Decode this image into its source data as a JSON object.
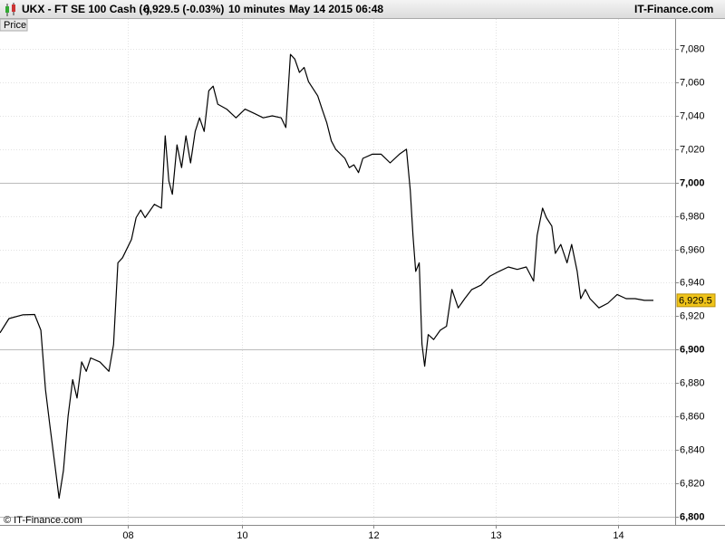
{
  "header": {
    "symbol": "UKX - FT SE 100 Cash (-)",
    "quote": "6,929.5 (-0.03%)",
    "interval": "10 minutes",
    "timestamp": "May 14 2015 06:48",
    "site": "IT-Finance.com"
  },
  "chart_data": {
    "type": "line",
    "panel_label": "Price",
    "watermark": "© IT-Finance.com",
    "color": "#000000",
    "grid": true,
    "x": [
      0,
      3.3,
      8.3,
      12.7,
      15,
      16.7,
      18.3,
      20,
      21.7,
      23.3,
      25,
      26.7,
      28.3,
      30,
      31.7,
      33.3,
      36.7,
      40,
      41.7,
      43.3,
      45,
      48.3,
      50,
      51.7,
      53.3,
      56.7,
      59.3,
      60.7,
      62,
      63.3,
      65,
      66.7,
      68.3,
      70,
      71.7,
      73.3,
      75,
      76.7,
      78.3,
      80,
      83.3,
      86.7,
      90,
      93.3,
      96.7,
      100,
      103.3,
      105,
      106.7,
      108.3,
      110,
      111.7,
      113.3,
      116.7,
      118.3,
      120,
      121.7,
      123.3,
      126.7,
      128.3,
      130,
      131.7,
      133.3,
      136.7,
      140,
      143.3,
      146.7,
      149.3,
      150.7,
      151.7,
      152.7,
      154,
      155,
      156,
      157.3,
      159.3,
      161.7,
      164,
      166,
      168.3,
      170.7,
      173.3,
      176.7,
      180,
      183.3,
      186.7,
      190,
      193.3,
      196,
      197.3,
      199.3,
      200.7,
      202.7,
      204,
      206,
      208.3,
      210,
      212,
      213.3,
      215,
      216.7,
      220,
      223.3,
      226.7,
      230,
      233.3,
      236.7,
      240
    ],
    "values": [
      6910,
      6918.6,
      6920.8,
      6921,
      6911.6,
      6876,
      6854.7,
      6833,
      6811,
      6827.6,
      6860,
      6882,
      6871,
      6892.6,
      6887,
      6895,
      6892.6,
      6887,
      6903,
      6952,
      6955,
      6966,
      6979,
      6983.6,
      6979,
      6987,
      6984.7,
      7028,
      7001,
      6993,
      7022.6,
      7009,
      7028,
      7011.8,
      7030.7,
      7038.8,
      7030.7,
      7055,
      7057.8,
      7047,
      7044,
      7038.8,
      7044,
      7041.5,
      7038.8,
      7040,
      7038.8,
      7033,
      7076.8,
      7074,
      7066,
      7069,
      7060.5,
      7052,
      7044,
      7036,
      7025,
      7020,
      7014.5,
      7009,
      7010.7,
      7006,
      7014.5,
      7017,
      7017,
      7011.8,
      7017,
      7020,
      6995.5,
      6968.4,
      6946.8,
      6952,
      6903.4,
      6890,
      6909,
      6906,
      6911.6,
      6914,
      6936,
      6925,
      6930.5,
      6936,
      6938.6,
      6944,
      6946.8,
      6949.5,
      6948,
      6949.5,
      6941,
      6968.4,
      6984.7,
      6979,
      6974,
      6957.6,
      6963,
      6952,
      6963,
      6946.8,
      6930.5,
      6936,
      6930.5,
      6925,
      6927.8,
      6933,
      6930.5,
      6930.5,
      6929.5,
      6929.5
    ],
    "xlim": [
      0,
      248
    ],
    "xticks": [
      {
        "value": 47,
        "label": "08"
      },
      {
        "value": 89,
        "label": "10"
      },
      {
        "value": 137,
        "label": "12"
      },
      {
        "value": 182,
        "label": "13"
      },
      {
        "value": 227,
        "label": "14"
      }
    ],
    "ylim": [
      6795,
      7098
    ],
    "yticks": [
      {
        "value": 6800,
        "label": "6,800"
      },
      {
        "value": 6820,
        "label": "6,820"
      },
      {
        "value": 6840,
        "label": "6,840"
      },
      {
        "value": 6860,
        "label": "6,860"
      },
      {
        "value": 6880,
        "label": "6,880"
      },
      {
        "value": 6900,
        "label": "6,900"
      },
      {
        "value": 6920,
        "label": "6,920"
      },
      {
        "value": 6940,
        "label": "6,940"
      },
      {
        "value": 6960,
        "label": "6,960"
      },
      {
        "value": 6980,
        "label": "6,980"
      },
      {
        "value": 7000,
        "label": "7,000"
      },
      {
        "value": 7020,
        "label": "7,020"
      },
      {
        "value": 7040,
        "label": "7,040"
      },
      {
        "value": 7060,
        "label": "7,060"
      },
      {
        "value": 7080,
        "label": "7,080"
      }
    ],
    "last_price": {
      "value": 6929.5,
      "label": "6,929.5"
    }
  }
}
